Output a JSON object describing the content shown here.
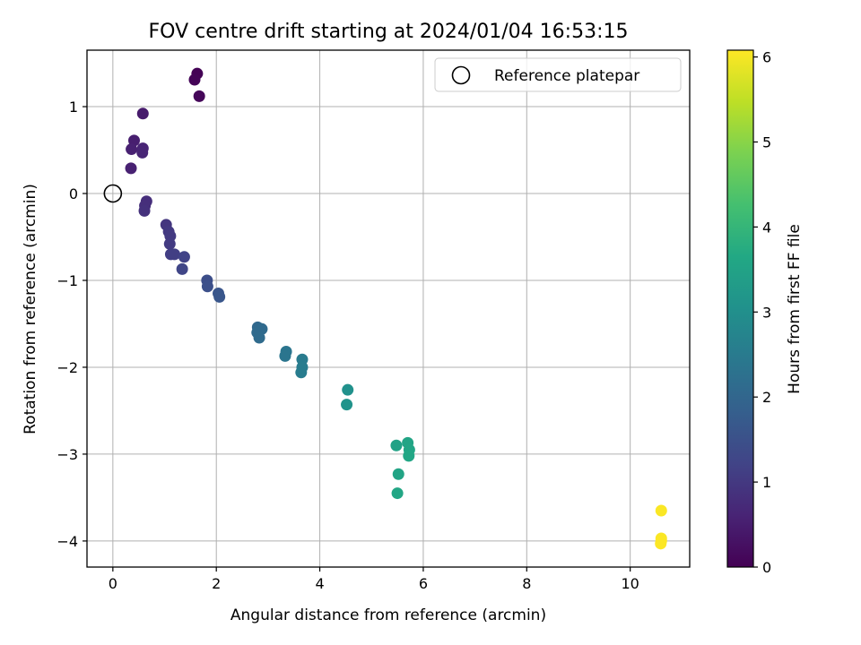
{
  "chart_data": {
    "type": "scatter",
    "title": "FOV centre drift starting at 2024/01/04 16:53:15",
    "xlabel": "Angular distance from reference (arcmin)",
    "ylabel": "Rotation from reference (arcmin)",
    "xlim": [
      -0.5,
      11.15
    ],
    "ylim": [
      -4.3,
      1.65
    ],
    "xticks": [
      0,
      2,
      4,
      6,
      8,
      10
    ],
    "yticks": [
      1,
      0,
      -1,
      -2,
      -3,
      -4
    ],
    "xtick_labels": [
      "0",
      "2",
      "4",
      "6",
      "8",
      "10"
    ],
    "ytick_labels": [
      "1",
      "0",
      "−1",
      "−2",
      "−3",
      "−4"
    ],
    "grid": true,
    "legend": {
      "position": "top-right",
      "entries": [
        {
          "label": "Reference platepar",
          "marker": "open-circle"
        }
      ]
    },
    "reference_point": {
      "x": 0,
      "y": 0
    },
    "colorbar": {
      "label": "Hours from first FF file",
      "range": [
        0,
        6.08
      ],
      "ticks": [
        0,
        1,
        2,
        3,
        4,
        5,
        6
      ],
      "tick_labels": [
        "0",
        "1",
        "2",
        "3",
        "4",
        "5",
        "6"
      ],
      "colormap": "viridis"
    },
    "points": [
      {
        "x": 1.63,
        "y": 1.38,
        "c": 0.02
      },
      {
        "x": 1.58,
        "y": 1.31,
        "c": 0.05
      },
      {
        "x": 1.67,
        "y": 1.12,
        "c": 0.1
      },
      {
        "x": 0.58,
        "y": 0.92,
        "c": 0.45
      },
      {
        "x": 0.41,
        "y": 0.61,
        "c": 0.5
      },
      {
        "x": 0.36,
        "y": 0.51,
        "c": 0.55
      },
      {
        "x": 0.58,
        "y": 0.52,
        "c": 0.6
      },
      {
        "x": 0.57,
        "y": 0.47,
        "c": 0.62
      },
      {
        "x": 0.35,
        "y": 0.29,
        "c": 0.55
      },
      {
        "x": 0.65,
        "y": -0.09,
        "c": 0.8
      },
      {
        "x": 0.62,
        "y": -0.14,
        "c": 0.82
      },
      {
        "x": 0.61,
        "y": -0.2,
        "c": 0.85
      },
      {
        "x": 1.03,
        "y": -0.36,
        "c": 0.95
      },
      {
        "x": 1.08,
        "y": -0.44,
        "c": 1.0
      },
      {
        "x": 1.11,
        "y": -0.49,
        "c": 1.02
      },
      {
        "x": 1.1,
        "y": -0.58,
        "c": 1.05
      },
      {
        "x": 1.12,
        "y": -0.7,
        "c": 1.1
      },
      {
        "x": 1.19,
        "y": -0.7,
        "c": 1.12
      },
      {
        "x": 1.38,
        "y": -0.73,
        "c": 1.2
      },
      {
        "x": 1.34,
        "y": -0.87,
        "c": 1.25
      },
      {
        "x": 1.82,
        "y": -1.0,
        "c": 1.45
      },
      {
        "x": 1.83,
        "y": -1.07,
        "c": 1.48
      },
      {
        "x": 2.04,
        "y": -1.15,
        "c": 1.6
      },
      {
        "x": 2.06,
        "y": -1.19,
        "c": 1.62
      },
      {
        "x": 2.8,
        "y": -1.54,
        "c": 2.05
      },
      {
        "x": 2.88,
        "y": -1.56,
        "c": 2.1
      },
      {
        "x": 2.79,
        "y": -1.6,
        "c": 2.08
      },
      {
        "x": 2.83,
        "y": -1.66,
        "c": 2.12
      },
      {
        "x": 3.35,
        "y": -1.82,
        "c": 2.35
      },
      {
        "x": 3.33,
        "y": -1.87,
        "c": 2.37
      },
      {
        "x": 3.66,
        "y": -1.91,
        "c": 2.5
      },
      {
        "x": 3.66,
        "y": -2.0,
        "c": 2.52
      },
      {
        "x": 3.64,
        "y": -2.06,
        "c": 2.54
      },
      {
        "x": 4.54,
        "y": -2.26,
        "c": 3.05
      },
      {
        "x": 4.52,
        "y": -2.43,
        "c": 3.08
      },
      {
        "x": 5.48,
        "y": -2.9,
        "c": 3.5
      },
      {
        "x": 5.7,
        "y": -2.87,
        "c": 3.55
      },
      {
        "x": 5.73,
        "y": -2.95,
        "c": 3.58
      },
      {
        "x": 5.72,
        "y": -3.02,
        "c": 3.6
      },
      {
        "x": 5.52,
        "y": -3.23,
        "c": 3.55
      },
      {
        "x": 5.5,
        "y": -3.45,
        "c": 3.6
      },
      {
        "x": 10.6,
        "y": -3.65,
        "c": 6.05
      },
      {
        "x": 10.6,
        "y": -3.97,
        "c": 6.05
      },
      {
        "x": 10.6,
        "y": -4.0,
        "c": 6.06
      },
      {
        "x": 10.59,
        "y": -4.03,
        "c": 6.07
      }
    ]
  }
}
